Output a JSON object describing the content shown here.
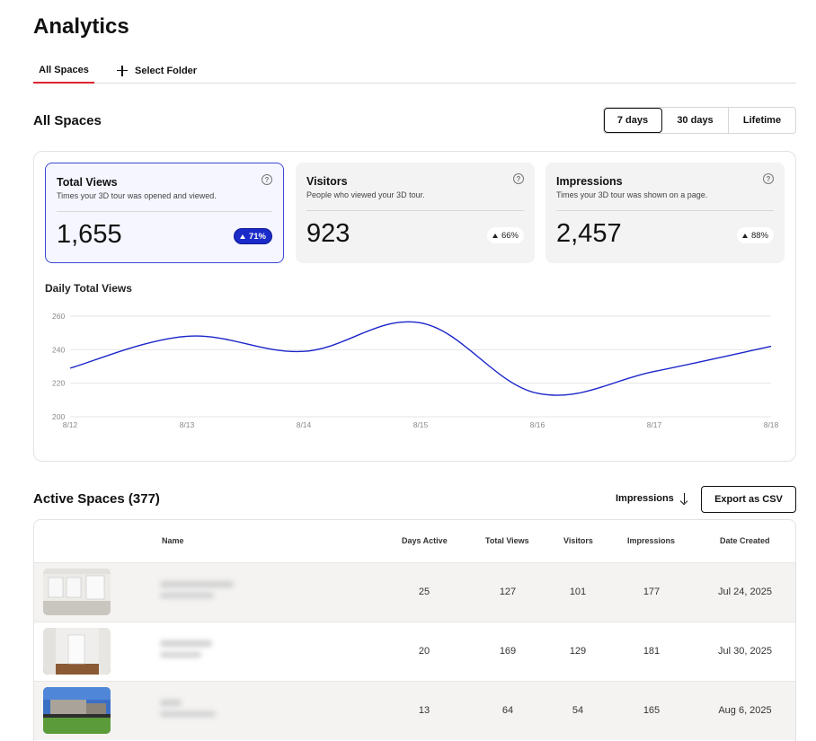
{
  "header": {
    "title": "Analytics"
  },
  "tabs": [
    {
      "label": "All Spaces",
      "active": true
    },
    {
      "label": "Select Folder",
      "icon": "plus-icon"
    }
  ],
  "overview": {
    "title": "All Spaces",
    "ranges": [
      {
        "label": "7 days",
        "active": true
      },
      {
        "label": "30 days",
        "active": false
      },
      {
        "label": "Lifetime",
        "active": false
      }
    ]
  },
  "metrics": [
    {
      "label": "Total Views",
      "description": "Times your 3D tour was opened and viewed.",
      "value": "1,655",
      "change": "71%",
      "selected": true
    },
    {
      "label": "Visitors",
      "description": "People who viewed your 3D tour.",
      "value": "923",
      "change": "66%",
      "selected": false
    },
    {
      "label": "Impressions",
      "description": "Times your 3D tour was shown on a page.",
      "value": "2,457",
      "change": "88%",
      "selected": false
    }
  ],
  "chart_data": {
    "type": "line",
    "title": "Daily Total Views",
    "x": [
      "8/12",
      "8/13",
      "8/14",
      "8/15",
      "8/16",
      "8/17",
      "8/18"
    ],
    "series": [
      {
        "values": [
          229,
          248,
          239,
          256,
          214,
          227,
          242
        ]
      }
    ],
    "yticks": [
      200,
      220,
      240,
      260
    ],
    "ylim": [
      200,
      260
    ],
    "grid": true,
    "line_color": "#1a25c9"
  },
  "active_spaces": {
    "title": "Active Spaces (377)",
    "sort_label": "Impressions",
    "export_label": "Export as CSV",
    "columns": [
      "Name",
      "Days Active",
      "Total Views",
      "Visitors",
      "Impressions",
      "Date Created"
    ],
    "rows": [
      {
        "days_active": "25",
        "total_views": "127",
        "visitors": "101",
        "impressions": "177",
        "date_created": "Jul 24, 2025"
      },
      {
        "days_active": "20",
        "total_views": "169",
        "visitors": "129",
        "impressions": "181",
        "date_created": "Jul 30, 2025"
      },
      {
        "days_active": "13",
        "total_views": "64",
        "visitors": "54",
        "impressions": "165",
        "date_created": "Aug 6, 2025"
      }
    ]
  },
  "colors": {
    "accent": "#1a2bc9",
    "tab_underline": "#e0242e"
  }
}
